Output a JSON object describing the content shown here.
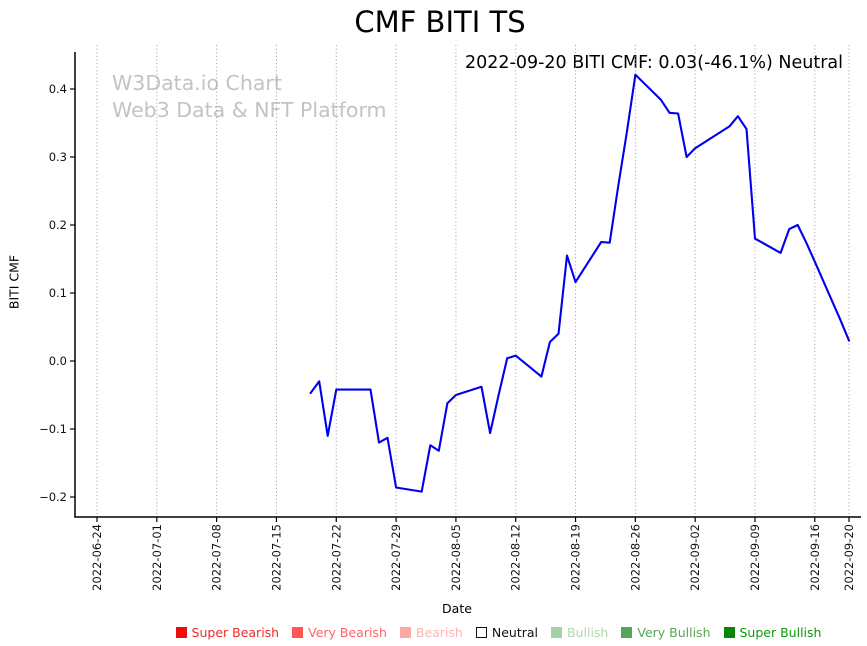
{
  "chart_data": {
    "type": "line",
    "title": "CMF BITI TS",
    "annotation": "2022-09-20 BITI CMF: 0.03(-46.1%) Neutral",
    "watermark": [
      "W3Data.io Chart",
      "Web3 Data & NFT Platform"
    ],
    "xlabel": "Date",
    "ylabel": "BITI CMF",
    "x_start": "2022-06-24",
    "x_end": "2022-09-20",
    "ylim": [
      -0.229,
      0.46
    ],
    "grid": "vertical-dotted",
    "legend_position": "bottom-center",
    "line_color": "#0000ee",
    "grid_color": "#9a9a9a",
    "axis_color": "#000000",
    "watermark_color": "#c3c3c3",
    "x_tick_labels": [
      "2022-06-24",
      "2022-07-01",
      "2022-07-08",
      "2022-07-15",
      "2022-07-22",
      "2022-07-29",
      "2022-08-05",
      "2022-08-12",
      "2022-08-19",
      "2022-08-26",
      "2022-09-02",
      "2022-09-09",
      "2022-09-16",
      "2022-09-20"
    ],
    "y_tick_values": [
      0.4,
      0.3,
      0.2,
      0.1,
      0.0,
      -0.1,
      -0.2
    ],
    "y_tick_labels": [
      "0.4",
      "0.3",
      "0.2",
      "0.1",
      "0.0",
      "−0.1",
      "−0.2"
    ],
    "series": [
      {
        "name": "BITI CMF",
        "points": [
          [
            "2022-07-19",
            -0.047
          ],
          [
            "2022-07-20",
            -0.03
          ],
          [
            "2022-07-21",
            -0.11
          ],
          [
            "2022-07-22",
            -0.042
          ],
          [
            "2022-07-25",
            -0.042
          ],
          [
            "2022-07-26",
            -0.042
          ],
          [
            "2022-07-27",
            -0.12
          ],
          [
            "2022-07-28",
            -0.113
          ],
          [
            "2022-07-29",
            -0.186
          ],
          [
            "2022-08-01",
            -0.192
          ],
          [
            "2022-08-02",
            -0.124
          ],
          [
            "2022-08-03",
            -0.132
          ],
          [
            "2022-08-04",
            -0.062
          ],
          [
            "2022-08-05",
            -0.05
          ],
          [
            "2022-08-08",
            -0.038
          ],
          [
            "2022-08-09",
            -0.106
          ],
          [
            "2022-08-10",
            -0.05
          ],
          [
            "2022-08-11",
            0.004
          ],
          [
            "2022-08-12",
            0.008
          ],
          [
            "2022-08-15",
            -0.023
          ],
          [
            "2022-08-16",
            0.028
          ],
          [
            "2022-08-17",
            0.04
          ],
          [
            "2022-08-18",
            0.155
          ],
          [
            "2022-08-19",
            0.116
          ],
          [
            "2022-08-22",
            0.175
          ],
          [
            "2022-08-23",
            0.174
          ],
          [
            "2022-08-24",
            0.258
          ],
          [
            "2022-08-25",
            0.336
          ],
          [
            "2022-08-26",
            0.421
          ],
          [
            "2022-08-29",
            0.384
          ],
          [
            "2022-08-30",
            0.365
          ],
          [
            "2022-08-31",
            0.364
          ],
          [
            "2022-09-01",
            0.3
          ],
          [
            "2022-09-02",
            0.313
          ],
          [
            "2022-09-06",
            0.345
          ],
          [
            "2022-09-07",
            0.36
          ],
          [
            "2022-09-08",
            0.341
          ],
          [
            "2022-09-09",
            0.18
          ],
          [
            "2022-09-12",
            0.159
          ],
          [
            "2022-09-13",
            0.194
          ],
          [
            "2022-09-14",
            0.2
          ],
          [
            "2022-09-15",
            0.174
          ],
          [
            "2022-09-16",
            0.146
          ],
          [
            "2022-09-19",
            0.06
          ],
          [
            "2022-09-20",
            0.03
          ]
        ]
      }
    ],
    "legend": {
      "items": [
        {
          "label": "Super Bearish",
          "swatch_color": "#ee0d0d",
          "text_color": "#ee2b2b",
          "border": false
        },
        {
          "label": "Very Bearish",
          "swatch_color": "#ff5656",
          "text_color": "#ff6565",
          "border": false
        },
        {
          "label": "Bearish",
          "swatch_color": "#ffa8a8",
          "text_color": "#ffb4b4",
          "border": false
        },
        {
          "label": "Neutral",
          "swatch_color": "#ffffff",
          "text_color": "#111111",
          "border": true
        },
        {
          "label": "Bullish",
          "swatch_color": "#a5d2a5",
          "text_color": "#b0d7b0",
          "border": false
        },
        {
          "label": "Very Bullish",
          "swatch_color": "#56a456",
          "text_color": "#58a658",
          "border": false
        },
        {
          "label": "Super Bullish",
          "swatch_color": "#088508",
          "text_color": "#0a9a0a",
          "border": false
        }
      ]
    }
  }
}
